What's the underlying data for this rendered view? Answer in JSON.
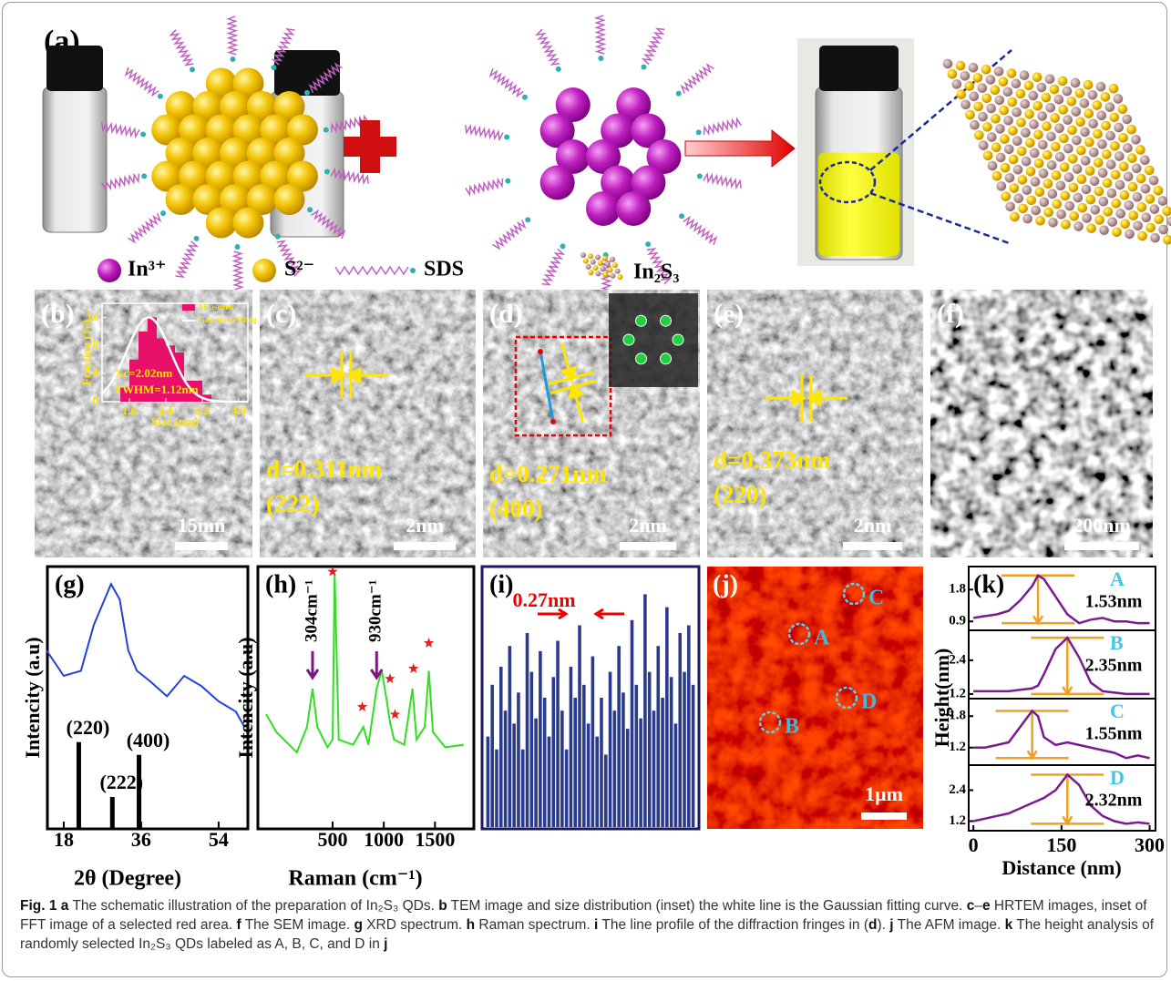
{
  "panels": {
    "a": {
      "label": "(a)",
      "legend": [
        "In³⁺",
        "S²⁻",
        "SDS",
        "In₂S₃"
      ]
    },
    "b": {
      "label": "(b)",
      "scale_bar": "15nm",
      "inset": {
        "type": "histogram",
        "legend": [
          "Measured",
          "Gaussian Fitting"
        ],
        "texts": [
          "Xc=2.02nm",
          "FWHM=1.12nm"
        ],
        "ylabel": "Fraction (%)",
        "xlabel": "Size (nm)",
        "bins": [
          1.4,
          1.6,
          1.8,
          2.0,
          2.2,
          2.4,
          2.6,
          2.8,
          3.0,
          3.2,
          3.4
        ],
        "counts": [
          2,
          6,
          10,
          12,
          9,
          8,
          7,
          3,
          3,
          1
        ],
        "fit": {
          "center": 2.02,
          "fwhm": 1.12,
          "peak": 12
        },
        "xlim": [
          1.0,
          4.2
        ],
        "xticks": [
          1.6,
          2.4,
          3.2,
          {
            "value": 4,
            "label": "4.0"
          }
        ],
        "ylim": [
          0,
          14
        ],
        "yticks": [
          0,
          4,
          8,
          12
        ]
      }
    },
    "c": {
      "label": "(c)",
      "spacing": "d=0.311nm",
      "plane": "(222)",
      "scale_bar": "2nm"
    },
    "d": {
      "label": "(d)",
      "spacing": "d=0.271nm",
      "plane": "(400)",
      "scale_bar": "2nm"
    },
    "e": {
      "label": "(e)",
      "spacing": "d=0.373nm",
      "plane": "(220)",
      "scale_bar": "2nm"
    },
    "f": {
      "label": "(f)",
      "scale_bar": "200nm"
    },
    "g": {
      "label": "(g)",
      "type": "line",
      "ylabel": "Intencity (a.u)",
      "xlabel": "2θ (Degree)",
      "xlim": [
        14.2,
        60.8
      ],
      "xticks": [
        18,
        36,
        54
      ],
      "ylim": [
        0,
        1
      ],
      "curve": {
        "x": [
          14,
          18,
          22,
          25,
          27,
          29,
          31,
          33,
          35,
          38,
          42,
          46,
          50,
          54,
          58,
          60
        ],
        "y": [
          0.7,
          0.6,
          0.62,
          0.8,
          0.88,
          0.96,
          0.9,
          0.7,
          0.62,
          0.58,
          0.52,
          0.6,
          0.56,
          0.5,
          0.46,
          0.4
        ]
      },
      "reference": {
        "labels": [
          "(220)",
          "(222)",
          "(400)"
        ],
        "x": [
          21.5,
          29.3,
          35.5
        ],
        "heights": [
          0.34,
          0.125,
          0.29
        ]
      }
    },
    "h": {
      "label": "(h)",
      "type": "line",
      "ylabel": "Intencity (a.u)",
      "xlabel": "Raman (cm⁻¹)",
      "xlim": [
        -230,
        1880
      ],
      "xticks": [
        500,
        1000,
        1500
      ],
      "ylim": [
        0,
        1
      ],
      "curve": {
        "x": [
          -150,
          -50,
          150,
          250,
          304,
          350,
          450,
          500,
          520,
          560,
          700,
          800,
          850,
          930,
          980,
          1030,
          1060,
          1100,
          1200,
          1280,
          1320,
          1400,
          1440,
          1480,
          1600,
          1780
        ],
        "y": [
          0.45,
          0.38,
          0.3,
          0.4,
          0.55,
          0.4,
          0.32,
          0.35,
          1.0,
          0.35,
          0.33,
          0.4,
          0.33,
          0.55,
          0.62,
          0.5,
          0.42,
          0.35,
          0.33,
          0.55,
          0.35,
          0.4,
          0.62,
          0.38,
          0.32,
          0.33
        ]
      },
      "stars": {
        "x": [
          500,
          790,
          1060,
          1110,
          1290,
          1440
        ],
        "y": [
          0.98,
          0.45,
          0.56,
          0.42,
          0.6,
          0.7
        ]
      },
      "peak_labels": [
        "304cm⁻¹",
        "930cm⁻¹"
      ],
      "peak_x": [
        304,
        930
      ]
    },
    "i": {
      "label": "(i)",
      "type": "bar",
      "annotation": "0.27nm",
      "ylim": [
        0,
        1
      ],
      "values": [
        0.35,
        0.55,
        0.3,
        0.62,
        0.45,
        0.7,
        0.4,
        0.52,
        0.3,
        0.75,
        0.6,
        0.42,
        0.68,
        0.5,
        0.35,
        0.58,
        0.72,
        0.45,
        0.3,
        0.62,
        0.5,
        0.78,
        0.55,
        0.4,
        0.66,
        0.35,
        0.5,
        0.28,
        0.6,
        0.45,
        0.7,
        0.52,
        0.38,
        0.8,
        0.55,
        0.42,
        0.9,
        0.6,
        0.45,
        0.7,
        0.5,
        0.85,
        0.58,
        0.4,
        0.75,
        0.6,
        0.78,
        0.55
      ]
    },
    "j": {
      "label": "(j)",
      "points": [
        "A",
        "B",
        "C",
        "D"
      ],
      "scale_bar": "1μm"
    },
    "k": {
      "label": "(k)",
      "type": "line",
      "ylabel": "Height(nm)",
      "xlabel": "Distance (nm)",
      "xlim": [
        -8,
        310
      ],
      "xticks": [
        0,
        150,
        300
      ],
      "x": [
        0,
        20,
        40,
        60,
        80,
        100,
        110,
        120,
        140,
        160,
        180,
        200,
        220,
        240,
        260,
        280,
        300
      ],
      "profiles": [
        {
          "name": "A",
          "height": "1.53nm",
          "ylim": [
            0.7,
            2.4
          ],
          "yticks": [
            0.9,
            1.8
          ],
          "y": [
            1.0,
            1.05,
            1.1,
            1.2,
            1.5,
            1.9,
            2.2,
            2.1,
            1.6,
            1.1,
            0.85,
            0.95,
            1.0,
            0.9,
            0.9,
            0.85,
            0.85
          ]
        },
        {
          "name": "B",
          "height": "2.35nm",
          "ylim": [
            1.1,
            3.4
          ],
          "yticks": [
            1.2,
            2.4
          ],
          "y": [
            1.3,
            1.3,
            1.3,
            1.3,
            1.35,
            1.4,
            1.5,
            1.9,
            2.8,
            3.2,
            2.5,
            1.6,
            1.3,
            1.25,
            1.2,
            1.2,
            1.2
          ]
        },
        {
          "name": "C",
          "height": "1.55nm",
          "ylim": [
            0.9,
            2.1
          ],
          "yticks": [
            1.2,
            1.8
          ],
          "y": [
            1.2,
            1.2,
            1.25,
            1.3,
            1.6,
            1.9,
            1.8,
            1.4,
            1.25,
            1.3,
            1.25,
            1.2,
            1.15,
            1.1,
            1.0,
            1.05,
            1.0
          ]
        },
        {
          "name": "D",
          "height": "2.32nm",
          "ylim": [
            0.9,
            3.3
          ],
          "yticks": [
            1.2,
            2.4
          ],
          "y": [
            1.2,
            1.3,
            1.4,
            1.5,
            1.7,
            1.9,
            2.0,
            2.1,
            2.4,
            3.0,
            2.6,
            1.8,
            1.4,
            1.2,
            1.1,
            1.15,
            1.1
          ]
        }
      ]
    }
  },
  "caption": [
    {
      "text": "Fig. 1",
      "bold": true
    },
    {
      "text": " a",
      "bold": true
    },
    {
      "text": " The schematic illustration of the preparation of In₂S₃ QDs. "
    },
    {
      "text": "b",
      "bold": true
    },
    {
      "text": " TEM image and size distribution (inset) the white line is the Gaussian fitting curve. "
    },
    {
      "text": "c",
      "bold": true
    },
    {
      "text": "–"
    },
    {
      "text": "e",
      "bold": true
    },
    {
      "text": " HRTEM images, inset of FFT image of a selected red area. "
    },
    {
      "text": "f",
      "bold": true
    },
    {
      "text": " The SEM image. "
    },
    {
      "text": "g",
      "bold": true
    },
    {
      "text": " XRD spectrum. "
    },
    {
      "text": "h",
      "bold": true
    },
    {
      "text": " Raman spectrum. "
    },
    {
      "text": "i",
      "bold": true
    },
    {
      "text": " The line profile of the diffraction fringes in ("
    },
    {
      "text": "d",
      "bold": true
    },
    {
      "text": "). "
    },
    {
      "text": "j",
      "bold": true
    },
    {
      "text": " The AFM image. "
    },
    {
      "text": "k",
      "bold": true
    },
    {
      "text": " The height analysis of randomly selected In₂S₃ QDs labeled as A, B, C, and D in "
    },
    {
      "text": "j",
      "bold": true
    }
  ]
}
